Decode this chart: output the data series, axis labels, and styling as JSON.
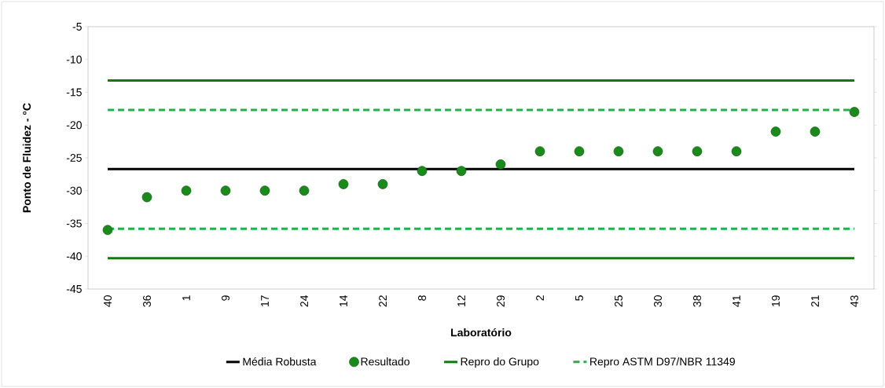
{
  "chart_data": {
    "type": "scatter",
    "xlabel": "Laboratório",
    "ylabel": "Ponto de Fluidez - °C",
    "categories": [
      "40",
      "36",
      "1",
      "9",
      "17",
      "24",
      "14",
      "22",
      "8",
      "12",
      "29",
      "2",
      "5",
      "25",
      "30",
      "38",
      "41",
      "19",
      "21",
      "43"
    ],
    "ylim": [
      -45,
      -5
    ],
    "yticks": [
      -45,
      -40,
      -35,
      -30,
      -25,
      -20,
      -15,
      -10,
      -5
    ],
    "legend": "bottom",
    "series": [
      {
        "name": "Média Robusta",
        "type": "line",
        "marker": "none",
        "line_style": "solid",
        "color": "#000000",
        "values": [
          -26.7,
          -26.7,
          -26.7,
          -26.7,
          -26.7,
          -26.7,
          -26.7,
          -26.7,
          -26.7,
          -26.7,
          -26.7,
          -26.7,
          -26.7,
          -26.7,
          -26.7,
          -26.7,
          -26.7,
          -26.7,
          -26.7,
          -26.7
        ]
      },
      {
        "name": "Resultado",
        "marker": "circle",
        "color": "#1a8a1a",
        "values": [
          -36,
          -31,
          -30,
          -30,
          -30,
          -30,
          -29,
          -29,
          -27,
          -27,
          -26,
          -24,
          -24,
          -24,
          -24,
          -24,
          -24,
          -21,
          -21,
          -18
        ]
      },
      {
        "name": "Repro do Grupo",
        "type": "line",
        "marker": "none",
        "line_style": "solid",
        "color": "#0a7d0a",
        "values": [
          -13.2,
          -13.2,
          -13.2,
          -13.2,
          -13.2,
          -13.2,
          -13.2,
          -13.2,
          -13.2,
          -13.2,
          -13.2,
          -13.2,
          -13.2,
          -13.2,
          -13.2,
          -13.2,
          -13.2,
          -13.2,
          -13.2,
          -13.2
        ]
      },
      {
        "type": "line",
        "marker": "none",
        "line_style": "solid",
        "color": "#0a7d0a",
        "values": [
          -40.3,
          -40.3,
          -40.3,
          -40.3,
          -40.3,
          -40.3,
          -40.3,
          -40.3,
          -40.3,
          -40.3,
          -40.3,
          -40.3,
          -40.3,
          -40.3,
          -40.3,
          -40.3,
          -40.3,
          -40.3,
          -40.3,
          -40.3
        ]
      },
      {
        "name": "Repro ASTM D97/NBR 11349",
        "type": "line",
        "marker": "none",
        "line_style": "dashed",
        "color": "#22b04b",
        "values": [
          -17.7,
          -17.7,
          -17.7,
          -17.7,
          -17.7,
          -17.7,
          -17.7,
          -17.7,
          -17.7,
          -17.7,
          -17.7,
          -17.7,
          -17.7,
          -17.7,
          -17.7,
          -17.7,
          -17.7,
          -17.7,
          -17.7,
          -17.7
        ]
      },
      {
        "type": "line",
        "marker": "none",
        "line_style": "dashed",
        "color": "#22b04b",
        "values": [
          -35.8,
          -35.8,
          -35.8,
          -35.8,
          -35.8,
          -35.8,
          -35.8,
          -35.8,
          -35.8,
          -35.8,
          -35.8,
          -35.8,
          -35.8,
          -35.8,
          -35.8,
          -35.8,
          -35.8,
          -35.8,
          -35.8,
          -35.8
        ]
      }
    ]
  }
}
